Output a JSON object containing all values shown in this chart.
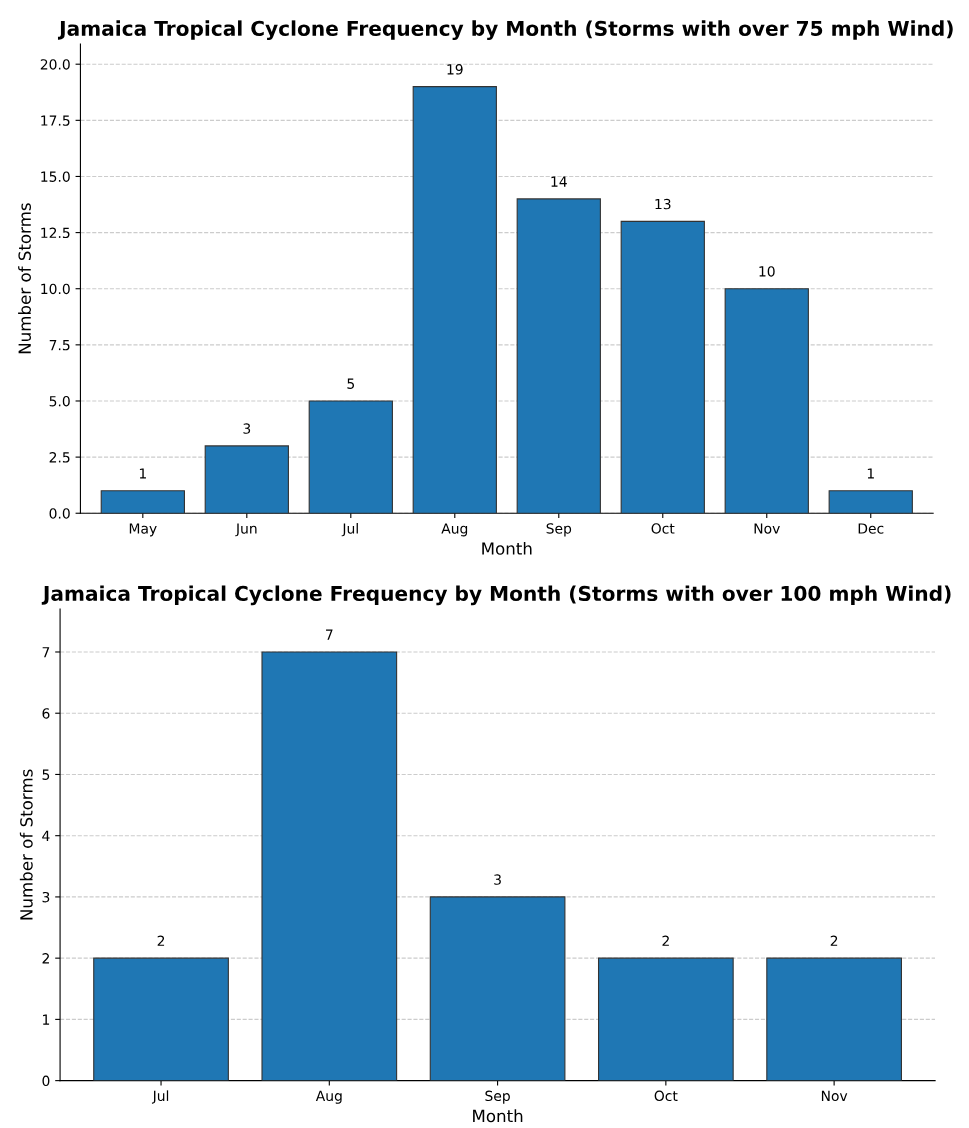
{
  "chart_data": [
    {
      "type": "bar",
      "title": "Jamaica Tropical Cyclone Frequency by Month (Storms with over 75 mph Wind)",
      "xlabel": "Month",
      "ylabel": "Number of Storms",
      "categories": [
        "May",
        "Jun",
        "Jul",
        "Aug",
        "Sep",
        "Oct",
        "Nov",
        "Dec"
      ],
      "values": [
        1,
        3,
        5,
        19,
        14,
        13,
        10,
        1
      ],
      "color": "#1f77b4",
      "ylim": [
        0,
        20.9
      ],
      "yticks": [
        {
          "value": 0,
          "label": "0.0"
        },
        {
          "value": 2.5,
          "label": "2.5"
        },
        {
          "value": 5,
          "label": "5.0"
        },
        {
          "value": 7.5,
          "label": "7.5"
        },
        {
          "value": 10,
          "label": "10.0"
        },
        {
          "value": 12.5,
          "label": "12.5"
        },
        {
          "value": 15,
          "label": "15.0"
        },
        {
          "value": 17.5,
          "label": "17.5"
        },
        {
          "value": 20,
          "label": "20.0"
        }
      ],
      "grid": "y",
      "data_labels": true
    },
    {
      "type": "bar",
      "title": "Jamaica Tropical Cyclone Frequency by Month (Storms with over 100 mph Wind)",
      "xlabel": "Month",
      "ylabel": "Number of Storms",
      "categories": [
        "Jul",
        "Aug",
        "Sep",
        "Oct",
        "Nov"
      ],
      "values": [
        2,
        7,
        3,
        2,
        2
      ],
      "color": "#1f77b4",
      "ylim": [
        0,
        7.7
      ],
      "yticks": [
        0,
        1,
        2,
        3,
        4,
        5,
        6,
        7
      ],
      "grid": "y",
      "data_labels": true
    }
  ]
}
